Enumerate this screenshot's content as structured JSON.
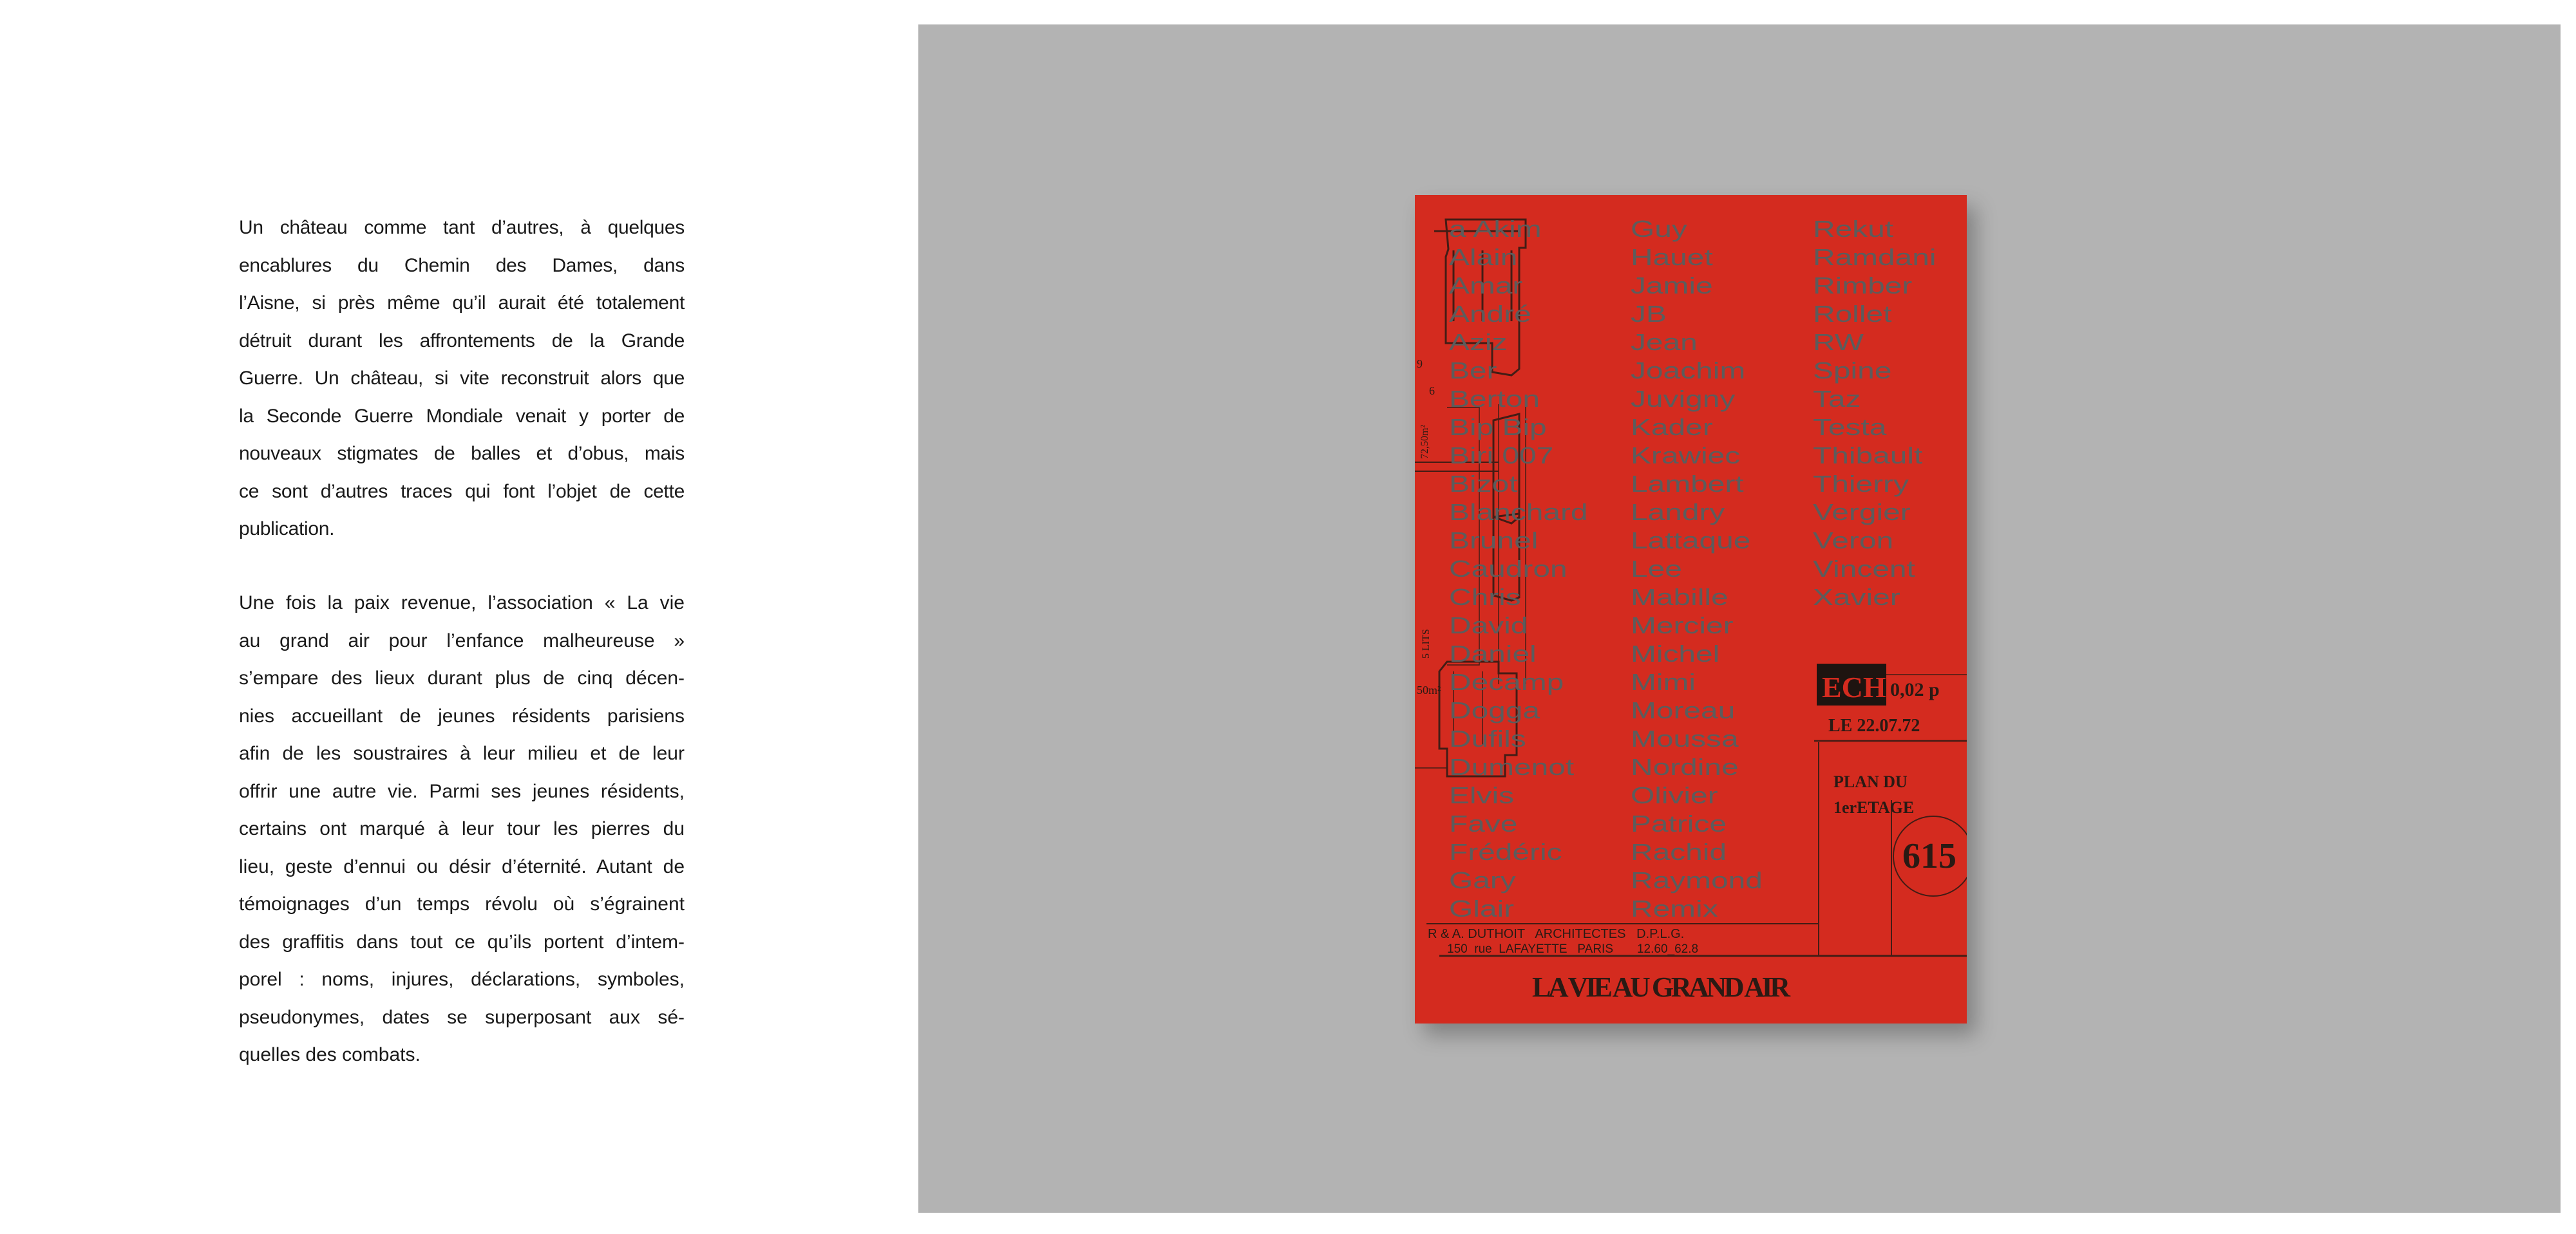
{
  "text": {
    "paragraph_1": [
      "Un château comme tant d’autres, à quelques",
      "encablures du Chemin des Dames, dans",
      "l’Aisne, si près même qu’il aurait été totalement",
      "détruit durant les affrontements de la Grande",
      "Guerre. Un château, si vite reconstruit alors que",
      "la Seconde Guerre Mondiale venait y porter de",
      "nouveaux stigmates de balles et d’obus, mais",
      "ce sont d’autres traces qui font l’objet de cette",
      "publication."
    ],
    "paragraph_2": [
      "Une fois la paix revenue, l’association « La vie",
      "au grand air pour l’enfance malheureuse »",
      "s’empare des lieux durant plus de cinq décen-",
      "nies accueillant de jeunes résidents parisiens",
      "afin de les soustraires à leur milieu et de leur",
      "offrir une autre vie. Parmi ses jeunes résidents,",
      "certains ont marqué à leur tour les pierres du",
      "lieu, geste d’ennui ou désir d’éternité. Autant de",
      "témoignages d’un temps révolu où s’égrainent",
      "des graffitis dans tout ce qu’ils portent d’intem-",
      "porel : noms, injures, déclarations, symboles,",
      "pseudonymes, dates se superposant aux sé-",
      "quelles des combats."
    ]
  },
  "cover": {
    "colors": {
      "background": "#d42b1f",
      "names": "#5c5c5c",
      "print": "#1e1410",
      "panel": "#b3b3b3"
    },
    "names": [
      [
        "a Akim",
        "Alain",
        "Amar",
        "André",
        "Aziz",
        "Ber",
        "Berton",
        "Bip Bip",
        "Biri 007",
        "Bizot",
        "Blanchard",
        "Brunel",
        "Caudron",
        "Chris",
        "David",
        "Daniel",
        "Decamp",
        "Dogga",
        "Dufils",
        "Dumenot",
        "Elvis",
        "Fave",
        "Frédéric",
        "Gary",
        "Glair"
      ],
      [
        "Guy",
        "Hauet",
        "Jamie",
        "JB",
        "Jean",
        "Joachim",
        "Juvigny",
        "Kader",
        "Krawiec",
        "Lambert",
        "Landry",
        "Lattaque",
        "Lee",
        "Mabille",
        "Mercier",
        "Michel",
        "Mimi",
        "Moreau",
        "Moussa",
        "Nordine",
        "Olivier",
        "Patrice",
        "Rachid",
        "Raymond",
        "Remix"
      ],
      [
        "Rekut",
        "Ramdani",
        "Rimber",
        "Rollet",
        "RW",
        "Spine",
        "Taz",
        "Testa",
        "Thibault",
        "Thierry",
        "Vergier",
        "Veron",
        "Vincent",
        "Xavier"
      ]
    ],
    "plan": {
      "ech_label": "ECH",
      "scale": "0,02 p",
      "date": "LE 22.07.72",
      "plan_line1": "PLAN DU",
      "plan_line2": "1erETAGE",
      "number": "615",
      "architects": "R & A. DUTHOIT   ARCHITECTES   D.P.L.G.",
      "address": "150  rue  LAFAYETTE   PARIS       12.60_62.8",
      "plan_marks": [
        "9",
        "6",
        "72,50m²",
        "5 LITS",
        "50m²"
      ],
      "title": "LA VIE AU GRAND AIR"
    }
  }
}
